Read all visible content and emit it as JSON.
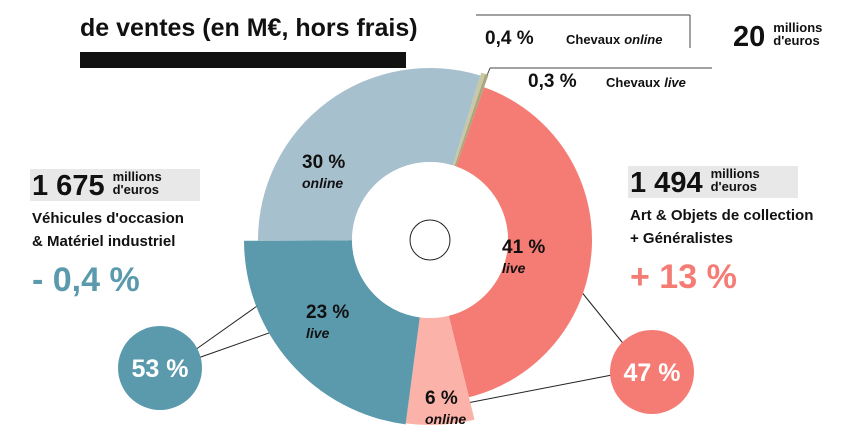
{
  "chart_data": {
    "type": "donut",
    "title": "de ventes (en M€, hors frais)",
    "segments": [
      {
        "name": "Chevaux",
        "mode": "online",
        "value": 0.4,
        "value_label": "0,4 %",
        "color": "#c9c7a4"
      },
      {
        "name": "Chevaux",
        "mode": "live",
        "value": 0.3,
        "value_label": "0,3 %",
        "color": "#a9a77e"
      },
      {
        "mode": "live",
        "value": 41,
        "value_label": "41 %",
        "color": "#f47c74"
      },
      {
        "mode": "online",
        "value": 6,
        "value_label": "6 %",
        "color": "#fbb2a8"
      },
      {
        "mode": "live",
        "value": 23,
        "value_label": "23 %",
        "color": "#5b9aad"
      },
      {
        "mode": "online",
        "value": 30,
        "value_label": "30 %",
        "color": "#a7c0cd"
      }
    ],
    "totals": [
      {
        "amount": {
          "value": 1675,
          "label": "1 675"
        },
        "unit": [
          "millions",
          "d'euros"
        ],
        "name": [
          "Véhicules d'occasion",
          "& Matériel industriel"
        ],
        "change": {
          "value": -0.4,
          "label": "- 0,4 %"
        },
        "share": {
          "value": 53,
          "label": "53 %"
        },
        "color": "#5b9aad"
      },
      {
        "amount": {
          "value": 1494,
          "label": "1 494"
        },
        "unit": [
          "millions",
          "d'euros"
        ],
        "name": [
          "Art & Objets de collection",
          "+ Généralistes"
        ],
        "change": {
          "value": 13,
          "label": "+ 13 %"
        },
        "share": {
          "value": 47,
          "label": "47 %"
        },
        "color": "#f47c74"
      },
      {
        "amount": 20,
        "unit": [
          "millions",
          "d'euros"
        ]
      }
    ]
  }
}
